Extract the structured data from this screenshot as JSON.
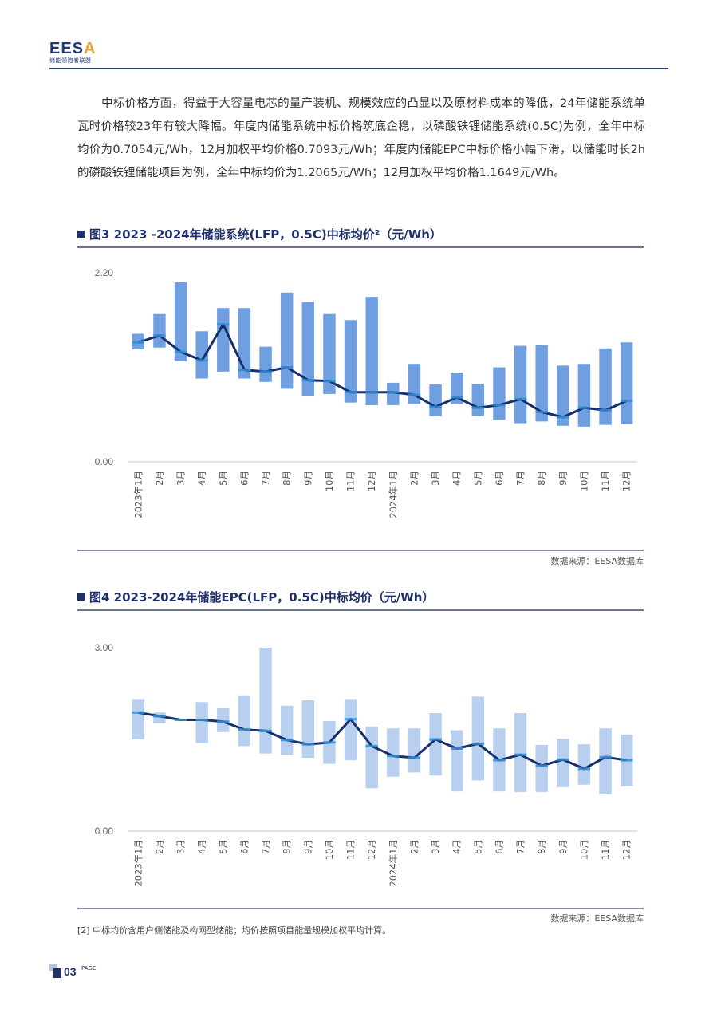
{
  "header": {
    "logo_text": "EESA",
    "logo_subtitle": "储能领跑者联盟"
  },
  "body_text": "中标价格方面，得益于大容量电芯的量产装机、规模效应的凸显以及原材料成本的降低，24年储能系统单瓦时价格较23年有较大降幅。年度内储能系统中标价格筑底企稳，以磷酸铁锂储能系统(0.5C)为例，全年中标均价为0.7054元/Wh，12月加权平均价格0.7093元/Wh；年度内储能EPC中标价格小幅下滑，以储能时长2h的磷酸铁锂储能项目为例，全年中标均价为1.2065元/Wh；12月加权平均价格1.1649元/Wh。",
  "figure3": {
    "title": "图3 2023 -2024年储能系统(LFP，0.5C)中标均价²（元/Wh）",
    "source": "数据来源：EESA数据库"
  },
  "figure4": {
    "title": "图4 2023-2024年储能EPC(LFP，0.5C)中标均价（元/Wh）",
    "source": "数据来源：EESA数据库"
  },
  "footnote": "[2] 中标均价含用户侧储能及构网型储能；均价按照项目能量规模加权平均计算。",
  "footer": {
    "page_number": "03",
    "page_label": "PAGE"
  },
  "colors": {
    "brand_navy": "#1e2f6b",
    "bar_fig3": "#6f9fe0",
    "bar_fig4": "#b9cff0",
    "line": "#16306e",
    "marker": "#2e8fd6"
  },
  "chart_data": [
    {
      "type": "bar",
      "subtype": "floating-range-bar-with-line",
      "title": "图3 2023 -2024年储能系统(LFP，0.5C)中标均价²（元/Wh）",
      "xlabel": "",
      "ylabel": "元/Wh",
      "ylim": [
        0,
        2.2
      ],
      "yticks": [
        "0.00",
        "2.20"
      ],
      "grid": false,
      "legend": null,
      "categories": [
        "2023年1月",
        "2月",
        "3月",
        "4月",
        "5月",
        "6月",
        "7月",
        "8月",
        "9月",
        "10月",
        "11月",
        "12月",
        "2024年1月",
        "2月",
        "3月",
        "4月",
        "5月",
        "6月",
        "7月",
        "8月",
        "9月",
        "10月",
        "11月",
        "12月"
      ],
      "series": [
        {
          "name": "最高价",
          "values": [
            1.49,
            1.72,
            2.09,
            1.52,
            1.79,
            1.79,
            1.34,
            1.97,
            1.86,
            1.72,
            1.65,
            1.92,
            0.92,
            1.14,
            0.9,
            1.04,
            0.91,
            1.1,
            1.35,
            1.36,
            1.12,
            1.14,
            1.32,
            1.39
          ]
        },
        {
          "name": "最低价",
          "values": [
            1.31,
            1.33,
            1.17,
            0.97,
            1.05,
            0.97,
            0.93,
            0.85,
            0.77,
            0.79,
            0.69,
            0.66,
            0.66,
            0.67,
            0.53,
            0.67,
            0.53,
            0.49,
            0.45,
            0.47,
            0.42,
            0.41,
            0.43,
            0.44
          ]
        },
        {
          "name": "中标均价",
          "values": [
            1.39,
            1.47,
            1.28,
            1.18,
            1.6,
            1.07,
            1.05,
            1.1,
            0.95,
            0.94,
            0.81,
            0.81,
            0.81,
            0.78,
            0.64,
            0.75,
            0.63,
            0.66,
            0.73,
            0.58,
            0.52,
            0.63,
            0.6,
            0.71
          ]
        }
      ]
    },
    {
      "type": "bar",
      "subtype": "floating-range-bar-with-line",
      "title": "图4 2023-2024年储能EPC(LFP，0.5C)中标均价（元/Wh）",
      "xlabel": "",
      "ylabel": "元/Wh",
      "ylim": [
        0,
        3.0
      ],
      "yticks": [
        "0.00",
        "3.00"
      ],
      "grid": false,
      "legend": null,
      "categories": [
        "2023年1月",
        "2月",
        "3月",
        "4月",
        "5月",
        "6月",
        "7月",
        "8月",
        "9月",
        "10月",
        "11月",
        "12月",
        "2024年1月",
        "2月",
        "3月",
        "4月",
        "5月",
        "6月",
        "7月",
        "8月",
        "9月",
        "10月",
        "11月",
        "12月"
      ],
      "series": [
        {
          "name": "最高价",
          "values": [
            2.16,
            1.94,
            1.82,
            2.11,
            2.01,
            2.22,
            3.0,
            2.05,
            2.14,
            1.8,
            2.16,
            1.71,
            1.68,
            1.68,
            1.93,
            1.65,
            2.2,
            1.68,
            1.93,
            1.41,
            1.51,
            1.42,
            1.68,
            1.58
          ]
        },
        {
          "name": "最低价",
          "values": [
            1.5,
            1.76,
            1.82,
            1.44,
            1.62,
            1.39,
            1.27,
            1.25,
            1.2,
            1.1,
            1.16,
            0.7,
            0.89,
            0.96,
            0.91,
            0.65,
            0.83,
            0.65,
            0.64,
            0.64,
            0.72,
            0.76,
            0.6,
            0.73
          ]
        },
        {
          "name": "中标均价",
          "values": [
            1.94,
            1.88,
            1.82,
            1.82,
            1.79,
            1.66,
            1.64,
            1.49,
            1.42,
            1.45,
            1.83,
            1.39,
            1.23,
            1.2,
            1.5,
            1.35,
            1.43,
            1.16,
            1.25,
            1.07,
            1.17,
            1.02,
            1.21,
            1.16
          ]
        }
      ]
    }
  ]
}
